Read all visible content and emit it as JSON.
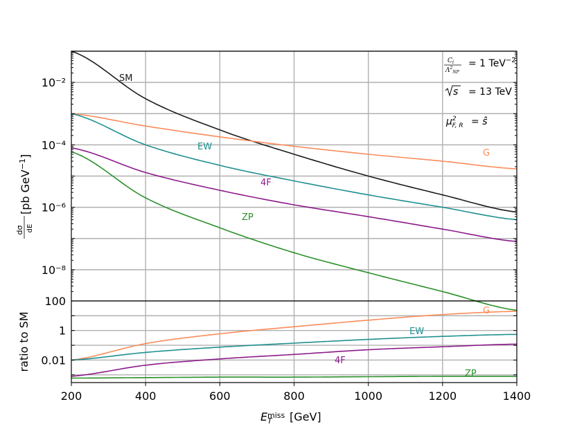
{
  "chart_data": [
    {
      "type": "line",
      "ylabel": "dσ/dE_T^miss [pb GeV⁻¹]",
      "yscale": "log",
      "xlim": [
        200,
        1400
      ],
      "ylim": [
        1e-09,
        0.1
      ],
      "x_ticks": [
        "200",
        "400",
        "600",
        "800",
        "1000",
        "1200",
        "1400"
      ],
      "y_ticks": [
        "10⁻²",
        "10⁻⁴",
        "10⁻⁶",
        "10⁻⁸"
      ],
      "grid": true,
      "annotations": [
        "C_i/Λ²_NP = 1 TeV⁻²",
        "√s = 13 TeV",
        "μ²_F,R = ŝ"
      ],
      "series": [
        {
          "name": "SM",
          "color": "#1a1a1a",
          "x": [
            200,
            400,
            600,
            800,
            1000,
            1200,
            1400
          ],
          "y": [
            0.1,
            0.003,
            0.0003,
            5e-05,
            1e-05,
            2.5e-06,
            7e-07
          ]
        },
        {
          "name": "G",
          "color": "#fa8c5a",
          "x": [
            200,
            400,
            600,
            800,
            1000,
            1200,
            1400
          ],
          "y": [
            0.001,
            0.0004,
            0.00018,
            9e-05,
            5e-05,
            3e-05,
            1.7e-05
          ]
        },
        {
          "name": "EW",
          "color": "#1f8f8f",
          "x": [
            200,
            400,
            600,
            800,
            1000,
            1200,
            1400
          ],
          "y": [
            0.001,
            0.0001,
            2.2e-05,
            7e-06,
            2.5e-06,
            1e-06,
            4e-07
          ]
        },
        {
          "name": "4F",
          "color": "#8b1a8b",
          "x": [
            200,
            400,
            600,
            800,
            1000,
            1200,
            1400
          ],
          "y": [
            8e-05,
            1.3e-05,
            3.5e-06,
            1.2e-06,
            5e-07,
            2e-07,
            8e-08
          ]
        },
        {
          "name": "ZP",
          "color": "#2a8f2a",
          "x": [
            200,
            400,
            600,
            800,
            1000,
            1200,
            1400
          ],
          "y": [
            6e-05,
            2e-06,
            2.2e-07,
            3.5e-08,
            8e-09,
            2e-09,
            5e-10
          ]
        }
      ]
    },
    {
      "type": "line",
      "xlabel": "E_T^miss [GeV]",
      "ylabel": "ratio to SM",
      "yscale": "log",
      "xlim": [
        200,
        1400
      ],
      "ylim": [
        0.0003,
        100
      ],
      "x_ticks": [
        "200",
        "400",
        "600",
        "800",
        "1000",
        "1200",
        "1400"
      ],
      "y_ticks": [
        "100",
        "1",
        "0.01"
      ],
      "grid": true,
      "series": [
        {
          "name": "G",
          "color": "#fa8c5a",
          "x": [
            200,
            400,
            600,
            800,
            1000,
            1200,
            1400
          ],
          "y": [
            0.01,
            0.13,
            0.6,
            1.8,
            5,
            12,
            20
          ]
        },
        {
          "name": "EW",
          "color": "#1f8f8f",
          "x": [
            200,
            400,
            600,
            800,
            1000,
            1200,
            1400
          ],
          "y": [
            0.01,
            0.033,
            0.075,
            0.14,
            0.25,
            0.4,
            0.55
          ]
        },
        {
          "name": "4F",
          "color": "#8b1a8b",
          "x": [
            200,
            400,
            600,
            800,
            1000,
            1200,
            1400
          ],
          "y": [
            0.0008,
            0.0045,
            0.012,
            0.024,
            0.05,
            0.08,
            0.12
          ]
        },
        {
          "name": "ZP",
          "color": "#2a8f2a",
          "x": [
            200,
            400,
            600,
            800,
            1000,
            1200,
            1400
          ],
          "y": [
            0.0006,
            0.00065,
            0.0007,
            0.0007,
            0.00075,
            0.0008,
            0.0008
          ]
        }
      ]
    }
  ]
}
